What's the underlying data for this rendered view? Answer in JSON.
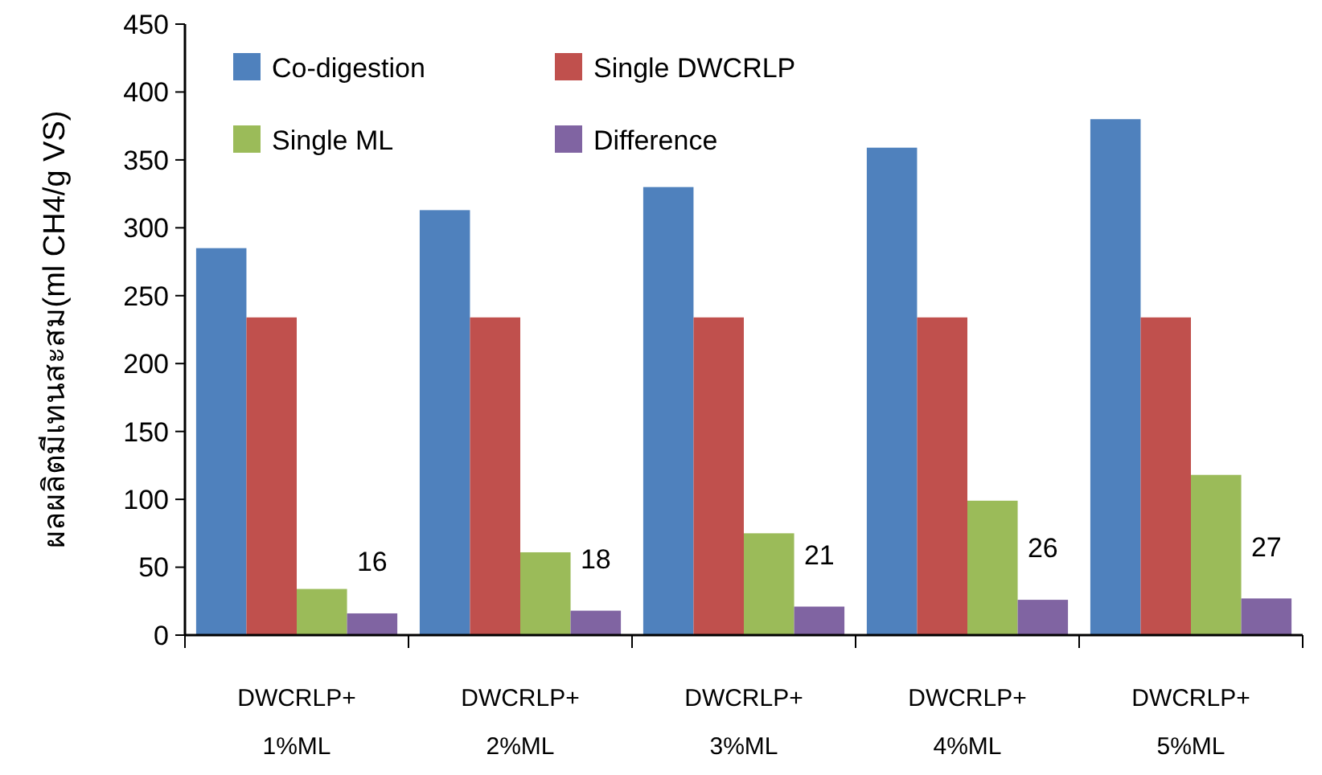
{
  "chart_data": {
    "type": "bar",
    "ylabel": "ผลผลิตมีเทนสะสม(ml CH4/g VS)",
    "categories": [
      "DWCRLP+ 1%ML",
      "DWCRLP+ 2%ML",
      "DWCRLP+ 3%ML",
      "DWCRLP+ 4%ML",
      "DWCRLP+ 5%ML"
    ],
    "series": [
      {
        "name": "Co-digestion",
        "color": "#4f81bd",
        "values": [
          285,
          313,
          330,
          359,
          380
        ]
      },
      {
        "name": "Single DWCRLP",
        "color": "#c0504d",
        "values": [
          234,
          234,
          234,
          234,
          234
        ]
      },
      {
        "name": "Single ML",
        "color": "#9bbb59",
        "values": [
          34,
          61,
          75,
          99,
          118
        ]
      },
      {
        "name": "Difference",
        "color": "#8064a2",
        "values": [
          16,
          18,
          21,
          26,
          27
        ],
        "value_labels": [
          "16",
          "18",
          "21",
          "26",
          "27"
        ]
      }
    ],
    "ylim": [
      0,
      450
    ],
    "yticks": [
      0,
      50,
      100,
      150,
      200,
      250,
      300,
      350,
      400,
      450
    ],
    "grid": false,
    "legend": "top left"
  }
}
